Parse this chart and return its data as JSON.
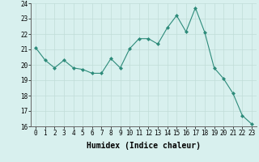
{
  "x": [
    0,
    1,
    2,
    3,
    4,
    5,
    6,
    7,
    8,
    9,
    10,
    11,
    12,
    13,
    14,
    15,
    16,
    17,
    18,
    19,
    20,
    21,
    22,
    23
  ],
  "y": [
    21.1,
    20.3,
    19.8,
    20.3,
    19.8,
    19.7,
    19.45,
    19.45,
    20.4,
    19.8,
    21.05,
    21.7,
    21.7,
    21.35,
    22.4,
    23.2,
    22.15,
    23.7,
    22.1,
    19.8,
    19.1,
    18.15,
    16.7,
    16.15
  ],
  "line_color": "#2d8b7a",
  "marker": "D",
  "marker_size": 2,
  "bg_color": "#d8f0ee",
  "grid_color": "#c0dcd8",
  "xlabel": "Humidex (Indice chaleur)",
  "ylim": [
    16,
    24
  ],
  "xlim": [
    -0.5,
    23.5
  ],
  "yticks": [
    16,
    17,
    18,
    19,
    20,
    21,
    22,
    23,
    24
  ],
  "xticks": [
    0,
    1,
    2,
    3,
    4,
    5,
    6,
    7,
    8,
    9,
    10,
    11,
    12,
    13,
    14,
    15,
    16,
    17,
    18,
    19,
    20,
    21,
    22,
    23
  ],
  "tick_fontsize": 5.5,
  "xlabel_fontsize": 7.0,
  "linewidth": 0.8
}
